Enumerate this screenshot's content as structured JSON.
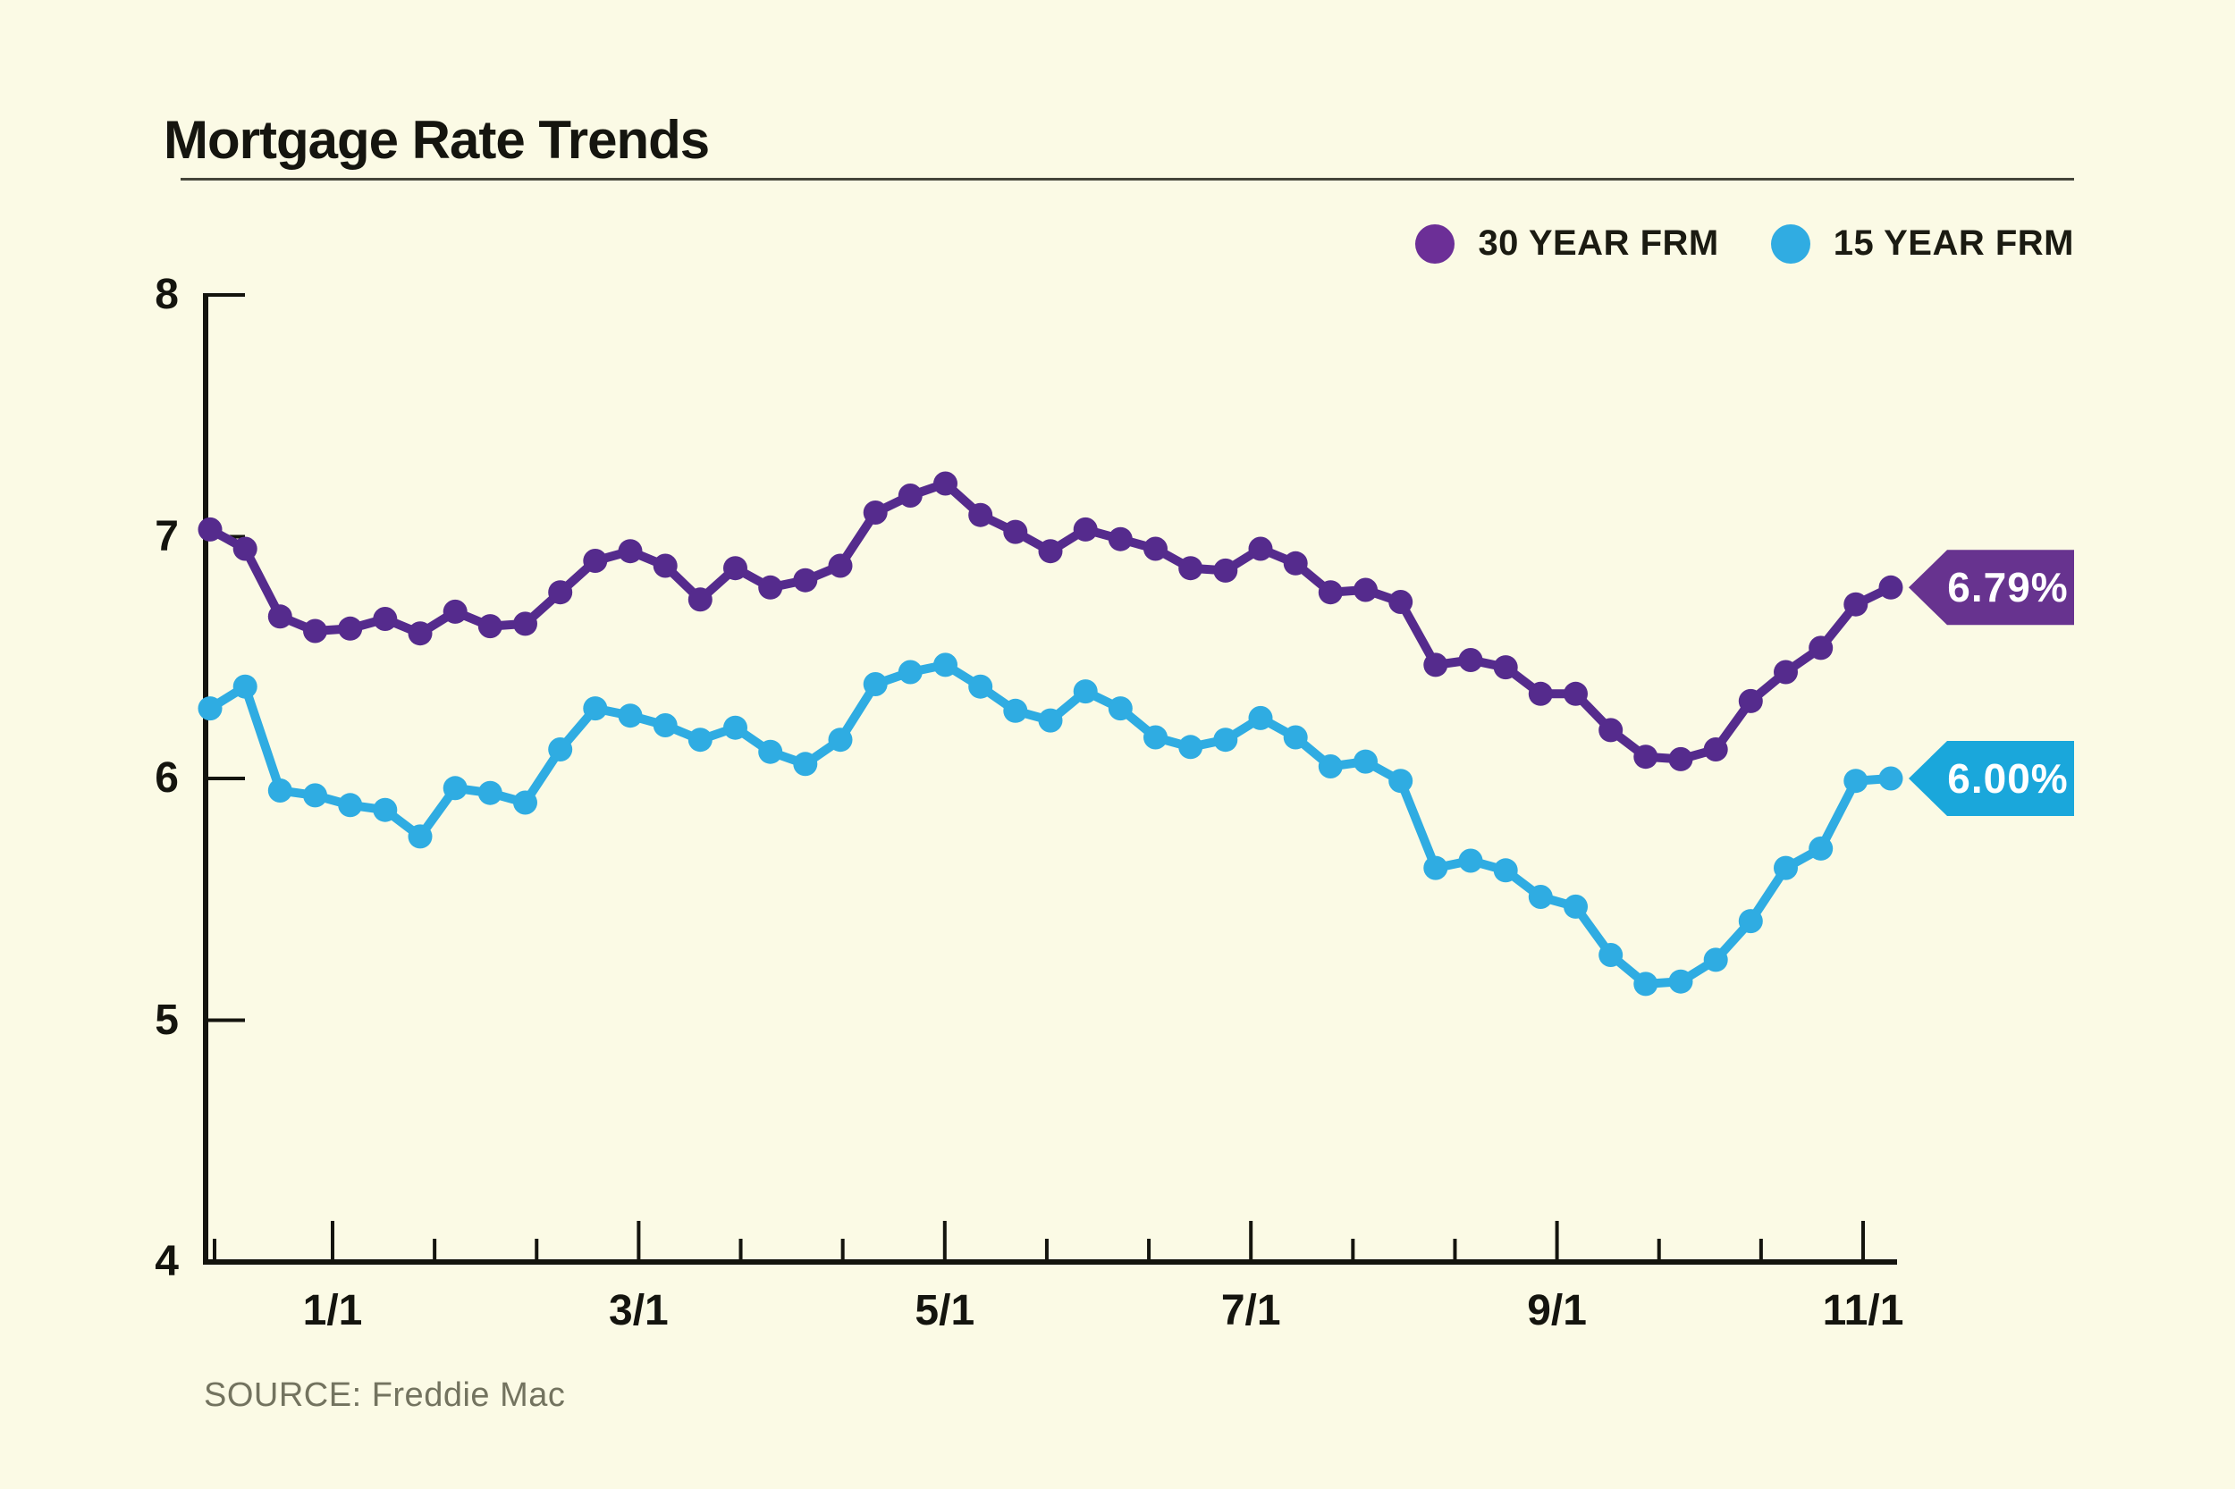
{
  "header": {
    "title": "Mortgage Rate Trends"
  },
  "legend": {
    "items": [
      {
        "label": "30 YEAR FRM",
        "color": "#6C2F97"
      },
      {
        "label": "15 YEAR FRM",
        "color": "#30ACE2"
      }
    ]
  },
  "source": {
    "text": "SOURCE: Freddie Mac"
  },
  "colors": {
    "background": "#FBFAE5",
    "axis": "#14140E",
    "purple_line": "#552B8D",
    "cyan_line": "#2FACE2",
    "purple_callout": "#67338F",
    "cyan_callout": "#1AA7DB"
  },
  "chart_data": {
    "type": "line",
    "title": "Mortgage Rate Trends",
    "source": "Freddie Mac",
    "grid": false,
    "legend_position": "top-right",
    "x_axis": {
      "tick_labels": [
        "1/1",
        "3/1",
        "5/1",
        "7/1",
        "9/1",
        "11/1"
      ],
      "unit": "weekly, Dec 2023 - Nov 2024"
    },
    "y_axis": {
      "tick_labels": [
        "8",
        "7",
        "6",
        "5",
        "4"
      ],
      "range": [
        4,
        8
      ],
      "unit": "percent"
    },
    "x": [
      "12/7",
      "12/14",
      "12/21",
      "12/28",
      "1/4",
      "1/11",
      "1/18",
      "1/25",
      "2/1",
      "2/8",
      "2/15",
      "2/22",
      "2/29",
      "3/7",
      "3/14",
      "3/21",
      "3/28",
      "4/4",
      "4/11",
      "4/18",
      "4/25",
      "5/2",
      "5/9",
      "5/16",
      "5/23",
      "5/30",
      "6/6",
      "6/13",
      "6/20",
      "6/27",
      "7/3",
      "7/11",
      "7/18",
      "7/25",
      "8/1",
      "8/8",
      "8/15",
      "8/22",
      "8/29",
      "9/5",
      "9/12",
      "9/19",
      "9/26",
      "10/3",
      "10/10",
      "10/17",
      "10/24",
      "10/31",
      "11/7"
    ],
    "series": [
      {
        "name": "30 YEAR FRM",
        "color": "#552B8D",
        "callout_color": "#67338F",
        "end_label": "6.79%",
        "values": [
          7.03,
          6.95,
          6.67,
          6.61,
          6.62,
          6.66,
          6.6,
          6.69,
          6.63,
          6.64,
          6.77,
          6.9,
          6.94,
          6.88,
          6.74,
          6.87,
          6.79,
          6.82,
          6.88,
          7.1,
          7.17,
          7.22,
          7.09,
          7.02,
          6.94,
          7.03,
          6.99,
          6.95,
          6.87,
          6.86,
          6.95,
          6.89,
          6.77,
          6.78,
          6.73,
          6.47,
          6.49,
          6.46,
          6.35,
          6.35,
          6.2,
          6.09,
          6.08,
          6.12,
          6.32,
          6.44,
          6.54,
          6.72,
          6.79
        ]
      },
      {
        "name": "15 YEAR FRM",
        "color": "#2FACE2",
        "callout_color": "#1AA7DB",
        "end_label": "6.00%",
        "values": [
          6.29,
          6.38,
          5.95,
          5.93,
          5.89,
          5.87,
          5.76,
          5.96,
          5.94,
          5.9,
          6.12,
          6.29,
          6.26,
          6.22,
          6.16,
          6.21,
          6.11,
          6.06,
          6.16,
          6.39,
          6.44,
          6.47,
          6.38,
          6.28,
          6.24,
          6.36,
          6.29,
          6.17,
          6.13,
          6.16,
          6.25,
          6.17,
          6.05,
          6.07,
          5.99,
          5.63,
          5.66,
          5.62,
          5.51,
          5.47,
          5.27,
          5.15,
          5.16,
          5.25,
          5.41,
          5.63,
          5.71,
          5.99,
          6.0
        ]
      }
    ]
  }
}
